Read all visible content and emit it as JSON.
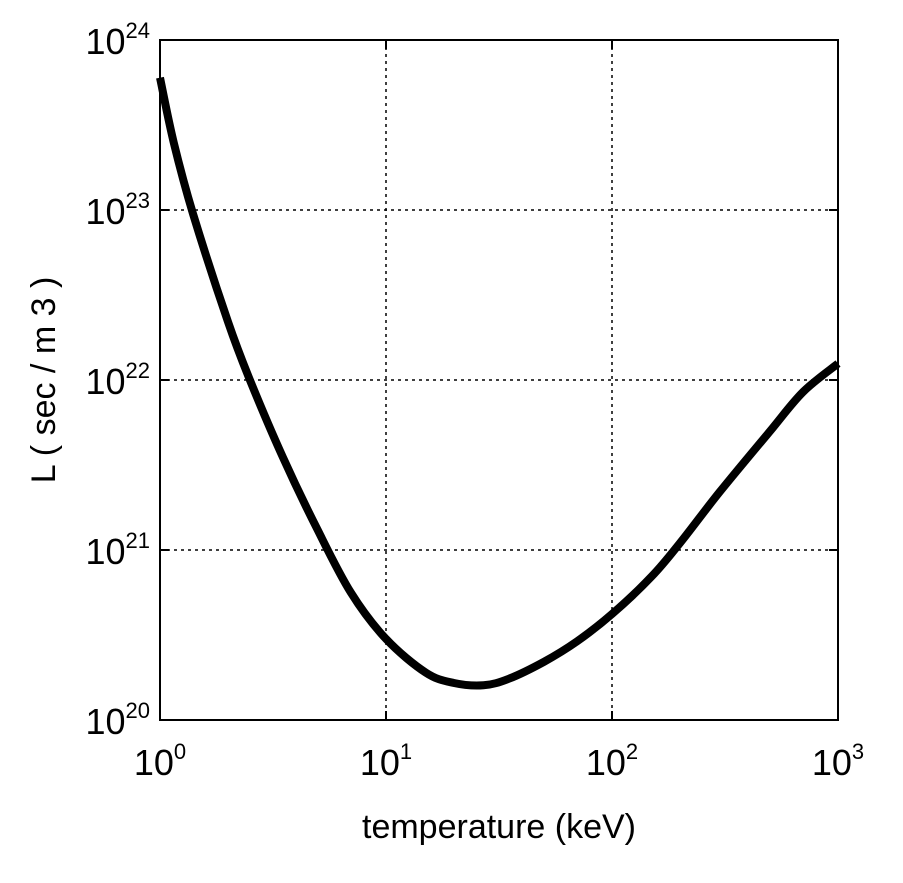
{
  "chart_data": {
    "type": "line",
    "title": "",
    "xlabel": "temperature (keV)",
    "ylabel": "L ( sec / m 3 )",
    "x_scale": "log",
    "y_scale": "log",
    "xlim": [
      1,
      1000
    ],
    "ylim": [
      1e+20,
      1e+24
    ],
    "grid": true,
    "grid_style": "dotted",
    "x_ticks": [
      {
        "base": "10",
        "exp": "0",
        "value": 1
      },
      {
        "base": "10",
        "exp": "1",
        "value": 10
      },
      {
        "base": "10",
        "exp": "2",
        "value": 100
      },
      {
        "base": "10",
        "exp": "3",
        "value": 1000
      }
    ],
    "y_ticks": [
      {
        "base": "10",
        "exp": "20",
        "value": 1e+20
      },
      {
        "base": "10",
        "exp": "21",
        "value": 1e+21
      },
      {
        "base": "10",
        "exp": "22",
        "value": 1e+22
      },
      {
        "base": "10",
        "exp": "23",
        "value": 1e+23
      },
      {
        "base": "10",
        "exp": "24",
        "value": 1e+24
      }
    ],
    "series": [
      {
        "color": "#000000",
        "x": [
          1.0,
          1.15,
          1.4,
          2.0,
          2.5,
          3.5,
          5.0,
          7.0,
          10,
          15,
          20,
          27,
          35,
          50,
          70,
          100,
          150,
          200,
          300,
          500,
          700,
          1000
        ],
        "y": [
          6e+23,
          2.5e+23,
          9.5e+22,
          2.2e+22,
          1e+22,
          3.5e+21,
          1.3e+21,
          5.6e+20,
          3e+20,
          1.9e+20,
          1.65e+20,
          1.6e+20,
          1.75e+20,
          2.2e+20,
          2.9e+20,
          4.2e+20,
          7e+20,
          1.1e+21,
          2.2e+21,
          5e+21,
          8.5e+21,
          1.25e+22
        ]
      }
    ]
  }
}
